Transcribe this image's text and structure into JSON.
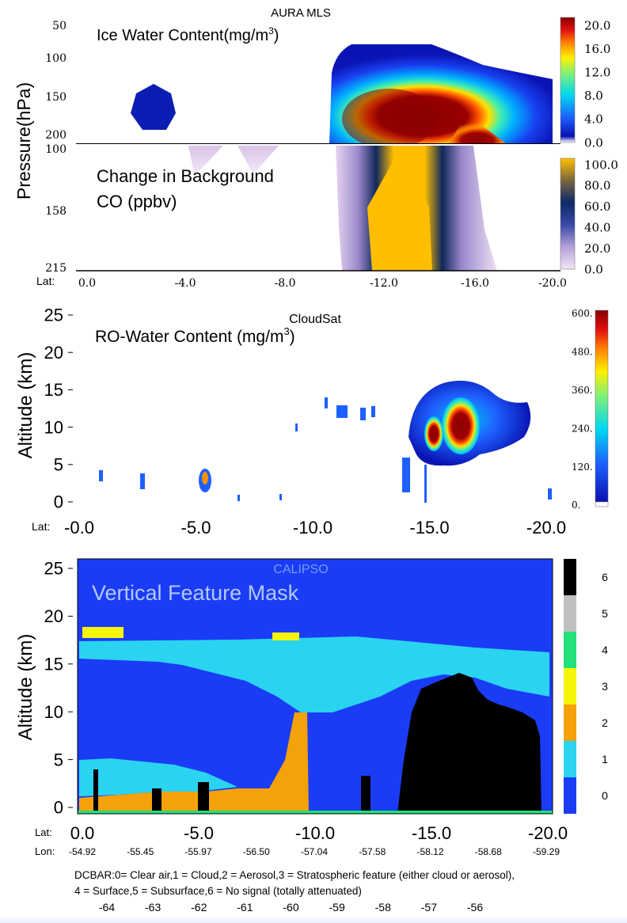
{
  "chart_data": [
    {
      "type": "heatmap",
      "title": "AURA MLS",
      "subtitle": "Ice Water Content(mg/m3)",
      "ylabel": "Pressure(hPa)",
      "ytick_labels": [
        "50",
        "100",
        "150",
        "200"
      ],
      "colorbar_ticks": [
        "20.0",
        "16.0",
        "12.0",
        "8.0",
        "4.0",
        "0.0"
      ],
      "value_range": [
        0,
        20
      ],
      "features": [
        {
          "lat": -3.0,
          "pressure": 175,
          "value": 0.5
        },
        {
          "lat": -13.4,
          "pressure": 160,
          "value": 20
        },
        {
          "lat": -16.2,
          "pressure": 190,
          "value": 18
        }
      ]
    },
    {
      "type": "heatmap",
      "subtitle": "Change in Background CO (ppbv)",
      "ylabel": "Pressure(hPa)",
      "ytick_labels": [
        "100",
        "158",
        "215"
      ],
      "xlabel": "Lat:",
      "x_ticks": [
        "0.0",
        "-4.0",
        "-8.0",
        "-12.0",
        "-16.0",
        "-20.0"
      ],
      "xlim": [
        0,
        -20
      ],
      "colorbar_ticks": [
        "100.0",
        "80.0",
        "60.0",
        "40.0",
        "20.0",
        "0.0"
      ],
      "value_range": [
        0,
        100
      ],
      "features": [
        {
          "lat": -13.4,
          "pressure": 158,
          "value": 100
        },
        {
          "lat": -4.8,
          "pressure": 108,
          "value": 10
        },
        {
          "lat": -7.6,
          "pressure": 112,
          "value": 15
        }
      ]
    },
    {
      "type": "heatmap",
      "title": "CloudSat",
      "subtitle": "RO-Water Content (mg/m3)",
      "ylabel": "Altitude (km)",
      "ytick_labels": [
        "25",
        "20",
        "15",
        "10",
        "5",
        "0"
      ],
      "ylim": [
        0,
        25
      ],
      "xlabel": "Lat:",
      "x_ticks": [
        "-0.0",
        "-5.0",
        "-10.0",
        "-15.0",
        "-20.0"
      ],
      "xlim": [
        0,
        -20
      ],
      "colorbar_ticks": [
        "600.",
        "480.",
        "360.",
        "240.",
        "120.",
        "0."
      ],
      "value_range": [
        0,
        600
      ],
      "features": [
        {
          "lat": -16.0,
          "altitude": 10,
          "value": 600
        },
        {
          "lat": -15.0,
          "altitude": 9,
          "value": 400
        },
        {
          "lat": -5.0,
          "altitude": 3.5,
          "value": 300
        }
      ]
    },
    {
      "type": "heatmap",
      "title": "CALIPSO",
      "subtitle": "Vertical Feature Mask",
      "ylabel": "Altitude (km)",
      "ytick_labels": [
        "25",
        "20",
        "15",
        "10",
        "5",
        "0"
      ],
      "ylim": [
        0,
        25
      ],
      "x_label_lat": "Lat:",
      "x_label_lon": "Lon:",
      "x_ticks": [
        "0.0",
        "-5.0",
        "-10.0",
        "-15.0",
        "-20.0"
      ],
      "xlim": [
        0,
        -20
      ],
      "lon_ticks": [
        "-54.92",
        "-55.45",
        "-55.97",
        "-56.50",
        "-57.04",
        "-57.58",
        "-58.12",
        "-58.68",
        "-59.29"
      ],
      "categories": [
        "0",
        "1",
        "2",
        "3",
        "4",
        "5",
        "6"
      ],
      "colors": [
        "#1a3cf5",
        "#2ad3f0",
        "#f5a10a",
        "#f5f50a",
        "#22e07a",
        "#c0c0c0",
        "#000000"
      ]
    }
  ],
  "caption": {
    "line1": "DCBAR:0= Clear air,1 = Cloud,2 = Aerosol,3 = Stratospheric feature (either cloud or aerosol),",
    "line2": "4 = Surface,5 = Subsurface,6 = No signal (totally attenuated)"
  },
  "bottom_axis": [
    "-64",
    "-63",
    "-62",
    "-61",
    "-60",
    "-59",
    "-58",
    "-57",
    "-56"
  ]
}
